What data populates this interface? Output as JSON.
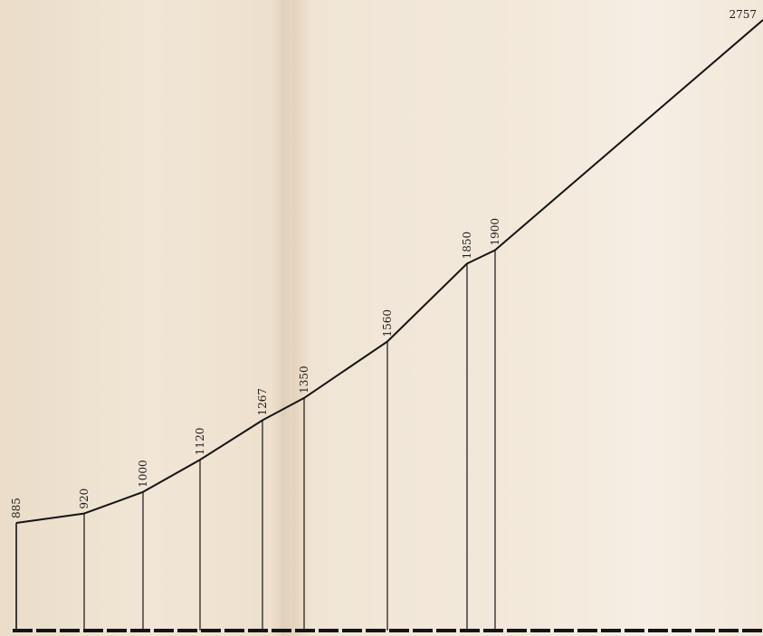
{
  "chart_data": {
    "type": "line",
    "title": "",
    "xlabel": "",
    "ylabel": "",
    "grid": false,
    "ylim": [
      0,
      2757
    ],
    "points": [
      {
        "label": "885",
        "y": 885
      },
      {
        "label": "920",
        "y": 920
      },
      {
        "label": "1000",
        "y": 1000
      },
      {
        "label": "1120",
        "y": 1120
      },
      {
        "label": "1267",
        "y": 1267
      },
      {
        "label": "1350",
        "y": 1350
      },
      {
        "label": "1560",
        "y": 1560
      },
      {
        "label": "1850",
        "y": 1850
      },
      {
        "label": "1900",
        "y": 1900
      },
      {
        "label": "2757",
        "y": 2757
      }
    ],
    "line_color": "#141414",
    "paper_color": "#efe3d2"
  }
}
